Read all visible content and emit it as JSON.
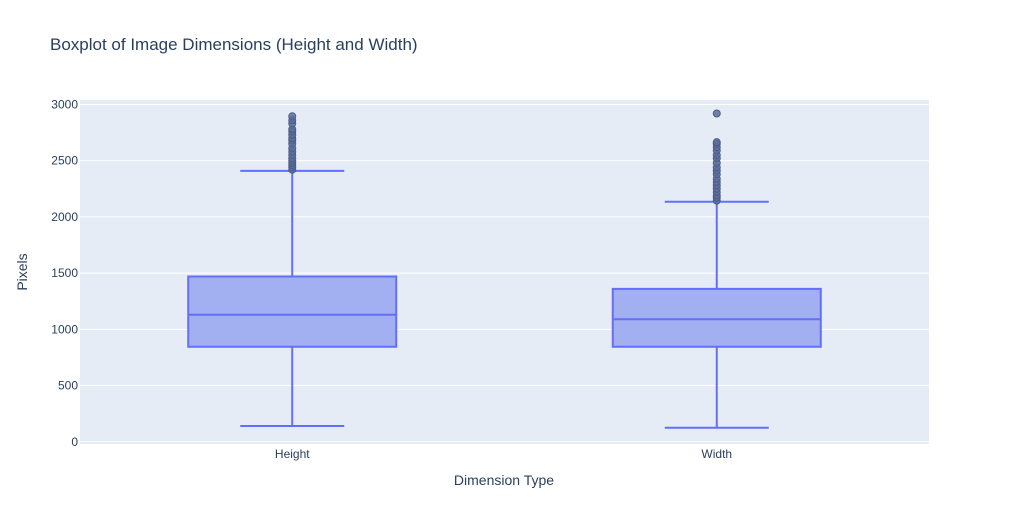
{
  "chart_data": {
    "type": "box",
    "title": "Boxplot of Image Dimensions (Height and Width)",
    "xlabel": "Dimension Type",
    "ylabel": "Pixels",
    "categories": [
      "Height",
      "Width"
    ],
    "ylim": [
      -20,
      3040
    ],
    "yticks": [
      0,
      500,
      1000,
      1500,
      2000,
      2500,
      3000
    ],
    "ytick_labels": [
      "0",
      "500",
      "1000",
      "1500",
      "2000",
      "2500",
      "3000"
    ],
    "grid": true,
    "colors": {
      "box_line": "#636efa",
      "box_fill": "#a2aff0",
      "plot_bg": "#e5ecf6",
      "outlier_fill": "#5c6b9b",
      "outlier_line": "#4a5f85"
    },
    "boxes": [
      {
        "name": "Height",
        "lower_whisker": 140,
        "q1": 845,
        "median": 1130,
        "q3": 1470,
        "upper_whisker": 2410,
        "outliers": [
          2420,
          2440,
          2460,
          2480,
          2500,
          2520,
          2550,
          2580,
          2610,
          2650,
          2680,
          2700,
          2730,
          2760,
          2780,
          2830,
          2860,
          2895
        ]
      },
      {
        "name": "Width",
        "lower_whisker": 125,
        "q1": 845,
        "median": 1090,
        "q3": 1360,
        "upper_whisker": 2135,
        "outliers": [
          2145,
          2170,
          2190,
          2220,
          2250,
          2280,
          2310,
          2340,
          2380,
          2410,
          2440,
          2480,
          2520,
          2550,
          2590,
          2620,
          2650,
          2665,
          2920
        ]
      }
    ]
  }
}
